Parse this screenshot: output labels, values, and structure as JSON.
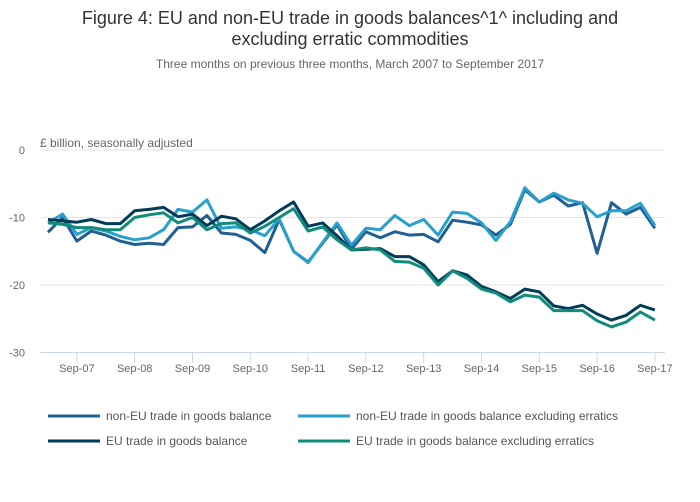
{
  "chart_data": {
    "type": "line",
    "title_line1": "Figure 4: EU and non-EU trade in goods balances^1^ including and",
    "title_line2": "excluding erratic commodities",
    "subtitle": "Three months on previous three months, March 2007 to September 2017",
    "ylabel": "£ billion, seasonally adjusted",
    "xlabel": "",
    "ylim": [
      -30,
      0
    ],
    "yticks": [
      0,
      -10,
      -20,
      -30
    ],
    "grid": true,
    "legend_position": "bottom",
    "x": [
      "Mar-07",
      "Jun-07",
      "Sep-07",
      "Dec-07",
      "Mar-08",
      "Jun-08",
      "Sep-08",
      "Dec-08",
      "Mar-09",
      "Jun-09",
      "Sep-09",
      "Dec-09",
      "Mar-10",
      "Jun-10",
      "Sep-10",
      "Dec-10",
      "Mar-11",
      "Jun-11",
      "Sep-11",
      "Dec-11",
      "Mar-12",
      "Jun-12",
      "Sep-12",
      "Dec-12",
      "Mar-13",
      "Jun-13",
      "Sep-13",
      "Dec-13",
      "Mar-14",
      "Jun-14",
      "Sep-14",
      "Dec-14",
      "Mar-15",
      "Jun-15",
      "Sep-15",
      "Dec-15",
      "Mar-16",
      "Jun-16",
      "Sep-16",
      "Dec-16",
      "Mar-17",
      "Jun-17",
      "Sep-17"
    ],
    "xtick_labels": [
      "Sep-07",
      "Sep-08",
      "Sep-09",
      "Sep-10",
      "Sep-11",
      "Sep-12",
      "Sep-13",
      "Sep-14",
      "Sep-15",
      "Sep-16",
      "Sep-17"
    ],
    "series": [
      {
        "name": "non-EU trade in goods balance",
        "color": "#206095",
        "values": [
          -12.2,
          -10.0,
          -13.5,
          -12.0,
          -12.6,
          -13.5,
          -14.0,
          -13.8,
          -14.0,
          -11.5,
          -11.4,
          -9.7,
          -12.3,
          -12.5,
          -13.4,
          -15.2,
          -10.3,
          -15.0,
          -16.6,
          -13.8,
          -11.1,
          -14.7,
          -12.1,
          -13.0,
          -12.1,
          -12.6,
          -12.5,
          -13.6,
          -10.4,
          -10.7,
          -11.1,
          -12.6,
          -11.0,
          -5.9,
          -7.7,
          -6.7,
          -8.3,
          -7.8,
          -15.3,
          -7.8,
          -9.5,
          -8.5,
          -11.6
        ]
      },
      {
        "name": "non-EU trade in goods balance excluding erratics",
        "color": "#27a0cc",
        "values": [
          -10.8,
          -9.5,
          -12.5,
          -11.5,
          -12.0,
          -12.8,
          -13.3,
          -13.0,
          -11.8,
          -8.8,
          -9.2,
          -7.4,
          -11.6,
          -11.4,
          -11.8,
          -12.7,
          -10.2,
          -15.0,
          -16.7,
          -13.7,
          -10.8,
          -14.1,
          -11.6,
          -11.8,
          -9.7,
          -11.2,
          -10.3,
          -12.6,
          -9.2,
          -9.4,
          -10.8,
          -13.4,
          -10.6,
          -5.6,
          -7.7,
          -6.4,
          -7.4,
          -7.9,
          -9.9,
          -9.0,
          -9.0,
          -7.9,
          -11.2
        ]
      },
      {
        "name": "EU trade in goods balance",
        "color": "#003c57",
        "values": [
          -10.3,
          -10.5,
          -10.7,
          -10.3,
          -10.9,
          -10.9,
          -9.0,
          -8.8,
          -8.5,
          -9.9,
          -9.5,
          -11.2,
          -9.8,
          -10.2,
          -11.8,
          -10.5,
          -9.0,
          -7.7,
          -11.3,
          -10.8,
          -12.7,
          -14.8,
          -14.7,
          -14.6,
          -15.8,
          -15.8,
          -17.0,
          -19.5,
          -17.9,
          -18.5,
          -20.2,
          -21.0,
          -22.0,
          -20.6,
          -21.0,
          -23.1,
          -23.5,
          -23.0,
          -24.3,
          -25.2,
          -24.5,
          -23.0,
          -23.7
        ]
      },
      {
        "name": "EU trade in goods balance excluding erratics",
        "color": "#118c7b",
        "values": [
          -10.8,
          -11.0,
          -11.5,
          -11.5,
          -11.8,
          -11.8,
          -10.0,
          -9.6,
          -9.3,
          -10.8,
          -10.0,
          -11.8,
          -10.9,
          -10.8,
          -12.3,
          -11.3,
          -10.0,
          -8.7,
          -12.0,
          -11.4,
          -13.3,
          -14.8,
          -14.5,
          -14.8,
          -16.5,
          -16.6,
          -17.5,
          -20.0,
          -17.9,
          -19.0,
          -20.6,
          -21.2,
          -22.5,
          -21.5,
          -21.8,
          -23.8,
          -23.8,
          -23.8,
          -25.3,
          -26.2,
          -25.5,
          -24.0,
          -25.2
        ]
      }
    ]
  }
}
